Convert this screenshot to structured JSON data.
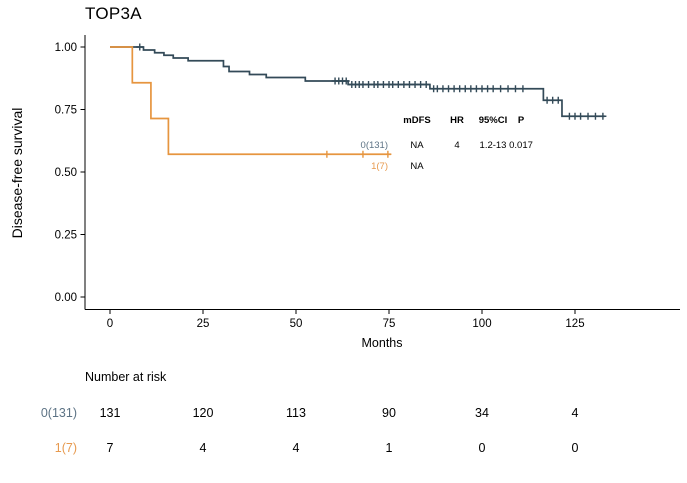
{
  "title": "TOP3A",
  "chart_data": {
    "type": "line",
    "subtype": "kaplan-meier-step",
    "title": "TOP3A",
    "xlabel": "Months",
    "ylabel": "Disease-free survival",
    "xticks": [
      0,
      25,
      50,
      75,
      100,
      125
    ],
    "ytick_labels": [
      "0.00",
      "0.25",
      "0.50",
      "0.75",
      "1.00"
    ],
    "xlim": [
      -6.7,
      153
    ],
    "ylim": [
      -0.05,
      1.05
    ],
    "grid": false,
    "axis_color": "#000000",
    "series": [
      {
        "name": "0(131)",
        "color": "#334a58",
        "label_color": "#5d7385",
        "steps": [
          [
            0,
            1.0
          ],
          [
            9,
            0.988
          ],
          [
            12,
            0.977
          ],
          [
            14.5,
            0.967
          ],
          [
            17,
            0.956
          ],
          [
            21,
            0.945
          ],
          [
            30.5,
            0.922
          ],
          [
            32,
            0.902
          ],
          [
            37.5,
            0.89
          ],
          [
            42,
            0.878
          ],
          [
            52.5,
            0.864
          ],
          [
            64,
            0.85
          ],
          [
            86,
            0.833
          ],
          [
            116.5,
            0.787
          ],
          [
            121.5,
            0.723
          ]
        ],
        "end": 133,
        "censor_months": [
          8,
          60.5,
          61.5,
          62.5,
          63.5,
          65,
          66,
          67,
          68,
          69.5,
          71,
          72,
          73.5,
          75,
          76,
          77.5,
          79,
          80.5,
          82,
          83.5,
          85,
          87,
          88,
          89.5,
          91,
          92.5,
          94,
          95.5,
          97,
          98.5,
          100,
          101.5,
          103,
          105,
          107,
          109,
          111,
          117.5,
          119,
          120.5,
          123.5,
          125,
          126.5,
          128.5,
          130.5,
          132.5
        ]
      },
      {
        "name": "1(7)",
        "color": "#e6953f",
        "label_color": "#e79a4f",
        "steps": [
          [
            0,
            1.0
          ],
          [
            6,
            0.857
          ],
          [
            11,
            0.714
          ],
          [
            15.7,
            0.571
          ]
        ],
        "end": 75.5,
        "censor_months": [
          58.3,
          68,
          74.7
        ]
      }
    ],
    "inset_stats": {
      "headers": [
        "mDFS",
        "HR",
        "95%CI",
        "P"
      ],
      "rows": [
        {
          "label": "0(131)",
          "values": [
            "NA",
            "4",
            "1.2-13",
            "0.017"
          ]
        },
        {
          "label": "1(7)",
          "values": [
            "NA",
            "",
            "",
            ""
          ]
        }
      ]
    },
    "risk_table": {
      "title": "Number at risk",
      "time_points": [
        0,
        25,
        50,
        75,
        100,
        125
      ],
      "rows": [
        {
          "label": "0(131)",
          "counts": [
            "131",
            "120",
            "113",
            "90",
            "34",
            "4"
          ]
        },
        {
          "label": "1(7)",
          "counts": [
            "7",
            "4",
            "4",
            "1",
            "0",
            "0"
          ]
        }
      ]
    }
  }
}
